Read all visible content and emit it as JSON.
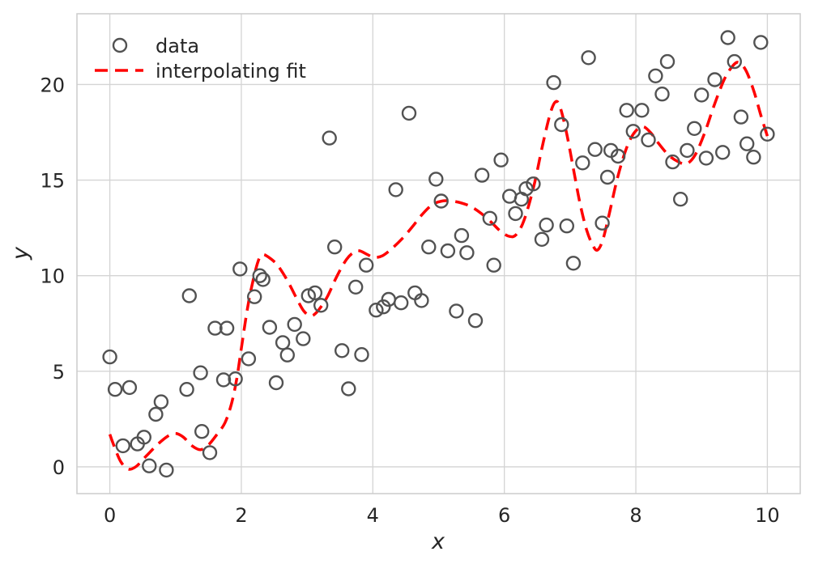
{
  "figure": {
    "background": "#ffffff"
  },
  "chart_data": {
    "type": "scatter",
    "title": "",
    "xlabel": "x",
    "ylabel": "y",
    "xlim": [
      -0.5,
      10.5
    ],
    "ylim": [
      -1.4,
      23.7
    ],
    "x_ticks": [
      "0",
      "2",
      "4",
      "6",
      "8",
      "10"
    ],
    "x_tick_values": [
      0,
      2,
      4,
      6,
      8,
      10
    ],
    "y_ticks": [
      "0",
      "5",
      "10",
      "15",
      "20"
    ],
    "y_tick_values": [
      0,
      5,
      10,
      15,
      20
    ],
    "grid": true,
    "grid_color": "#d4d4d4",
    "spine_color": "#cccccc",
    "legend": {
      "position": "upper left",
      "entries": [
        {
          "label": "data",
          "glyph": "open-circle-marker"
        },
        {
          "label": "interpolating fit",
          "glyph": "red-dashed-line"
        }
      ]
    },
    "series": [
      {
        "name": "data",
        "type": "scatter",
        "marker": "open-circle",
        "marker_color": "#525252",
        "points": [
          [
            0.0,
            5.75
          ],
          [
            0.08,
            4.05
          ],
          [
            0.2,
            1.1
          ],
          [
            0.3,
            4.15
          ],
          [
            0.42,
            1.2
          ],
          [
            0.52,
            1.55
          ],
          [
            0.6,
            0.05
          ],
          [
            0.7,
            2.75
          ],
          [
            0.78,
            3.4
          ],
          [
            0.86,
            -0.17
          ],
          [
            1.17,
            4.05
          ],
          [
            1.21,
            8.95
          ],
          [
            1.38,
            4.92
          ],
          [
            1.4,
            1.85
          ],
          [
            1.52,
            0.74
          ],
          [
            1.6,
            7.25
          ],
          [
            1.73,
            4.55
          ],
          [
            1.78,
            7.25
          ],
          [
            1.91,
            4.6
          ],
          [
            1.98,
            10.35
          ],
          [
            2.11,
            5.65
          ],
          [
            2.2,
            8.9
          ],
          [
            2.28,
            10.0
          ],
          [
            2.33,
            9.8
          ],
          [
            2.43,
            7.3
          ],
          [
            2.53,
            4.4
          ],
          [
            2.63,
            6.5
          ],
          [
            2.7,
            5.85
          ],
          [
            2.81,
            7.45
          ],
          [
            2.94,
            6.7
          ],
          [
            3.02,
            8.95
          ],
          [
            3.12,
            9.1
          ],
          [
            3.21,
            8.45
          ],
          [
            3.34,
            17.2
          ],
          [
            3.42,
            11.5
          ],
          [
            3.53,
            6.08
          ],
          [
            3.63,
            4.08
          ],
          [
            3.74,
            9.4
          ],
          [
            3.83,
            5.87
          ],
          [
            3.9,
            10.55
          ],
          [
            4.05,
            8.2
          ],
          [
            4.16,
            8.37
          ],
          [
            4.24,
            8.76
          ],
          [
            4.35,
            14.5
          ],
          [
            4.43,
            8.58
          ],
          [
            4.55,
            18.5
          ],
          [
            4.64,
            9.1
          ],
          [
            4.74,
            8.7
          ],
          [
            4.85,
            11.5
          ],
          [
            4.96,
            15.05
          ],
          [
            5.04,
            13.9
          ],
          [
            5.14,
            11.3
          ],
          [
            5.27,
            8.15
          ],
          [
            5.35,
            12.1
          ],
          [
            5.43,
            11.2
          ],
          [
            5.56,
            7.65
          ],
          [
            5.66,
            15.25
          ],
          [
            5.78,
            13.0
          ],
          [
            5.84,
            10.55
          ],
          [
            5.95,
            16.05
          ],
          [
            6.08,
            14.15
          ],
          [
            6.17,
            13.25
          ],
          [
            6.26,
            14.0
          ],
          [
            6.33,
            14.55
          ],
          [
            6.44,
            14.8
          ],
          [
            6.57,
            11.9
          ],
          [
            6.64,
            12.65
          ],
          [
            6.75,
            20.1
          ],
          [
            6.87,
            17.9
          ],
          [
            6.95,
            12.6
          ],
          [
            7.05,
            10.65
          ],
          [
            7.19,
            15.9
          ],
          [
            7.28,
            21.4
          ],
          [
            7.38,
            16.6
          ],
          [
            7.49,
            12.75
          ],
          [
            7.57,
            15.15
          ],
          [
            7.62,
            16.55
          ],
          [
            7.73,
            16.25
          ],
          [
            7.86,
            18.65
          ],
          [
            7.96,
            17.55
          ],
          [
            8.09,
            18.65
          ],
          [
            8.19,
            17.1
          ],
          [
            8.3,
            20.45
          ],
          [
            8.4,
            19.5
          ],
          [
            8.48,
            21.2
          ],
          [
            8.56,
            15.95
          ],
          [
            8.68,
            14.0
          ],
          [
            8.78,
            16.55
          ],
          [
            8.89,
            17.7
          ],
          [
            9.0,
            19.45
          ],
          [
            9.07,
            16.15
          ],
          [
            9.2,
            20.25
          ],
          [
            9.32,
            16.45
          ],
          [
            9.4,
            22.45
          ],
          [
            9.5,
            21.2
          ],
          [
            9.6,
            18.3
          ],
          [
            9.69,
            16.9
          ],
          [
            9.79,
            16.2
          ],
          [
            9.9,
            22.2
          ],
          [
            10.0,
            17.4
          ]
        ]
      },
      {
        "name": "interpolating fit",
        "type": "line",
        "style": "dashed",
        "color": "#ff0000",
        "line_width": 3.5,
        "points": [
          [
            0.0,
            1.7
          ],
          [
            0.08,
            0.95
          ],
          [
            0.17,
            0.25
          ],
          [
            0.28,
            -0.12
          ],
          [
            0.4,
            0.02
          ],
          [
            0.55,
            0.55
          ],
          [
            0.72,
            1.15
          ],
          [
            0.88,
            1.6
          ],
          [
            1.0,
            1.75
          ],
          [
            1.12,
            1.55
          ],
          [
            1.25,
            1.1
          ],
          [
            1.38,
            0.9
          ],
          [
            1.5,
            1.15
          ],
          [
            1.62,
            1.65
          ],
          [
            1.75,
            2.3
          ],
          [
            1.85,
            3.3
          ],
          [
            1.93,
            4.6
          ],
          [
            2.0,
            6.2
          ],
          [
            2.08,
            8.0
          ],
          [
            2.15,
            9.3
          ],
          [
            2.25,
            10.7
          ],
          [
            2.32,
            11.1
          ],
          [
            2.42,
            10.95
          ],
          [
            2.55,
            10.55
          ],
          [
            2.7,
            9.75
          ],
          [
            2.85,
            8.75
          ],
          [
            2.95,
            8.15
          ],
          [
            3.05,
            7.9
          ],
          [
            3.15,
            8.1
          ],
          [
            3.3,
            8.85
          ],
          [
            3.45,
            9.95
          ],
          [
            3.6,
            10.85
          ],
          [
            3.72,
            11.25
          ],
          [
            3.8,
            11.3
          ],
          [
            3.92,
            11.1
          ],
          [
            4.02,
            10.95
          ],
          [
            4.15,
            11.05
          ],
          [
            4.3,
            11.45
          ],
          [
            4.45,
            11.95
          ],
          [
            4.6,
            12.55
          ],
          [
            4.75,
            13.2
          ],
          [
            4.9,
            13.7
          ],
          [
            5.05,
            13.9
          ],
          [
            5.2,
            13.9
          ],
          [
            5.35,
            13.8
          ],
          [
            5.5,
            13.6
          ],
          [
            5.65,
            13.25
          ],
          [
            5.8,
            12.8
          ],
          [
            5.95,
            12.3
          ],
          [
            6.08,
            12.05
          ],
          [
            6.18,
            12.15
          ],
          [
            6.3,
            12.9
          ],
          [
            6.45,
            14.7
          ],
          [
            6.58,
            16.8
          ],
          [
            6.7,
            18.5
          ],
          [
            6.78,
            19.1
          ],
          [
            6.85,
            18.8
          ],
          [
            6.95,
            17.4
          ],
          [
            7.05,
            15.6
          ],
          [
            7.15,
            13.8
          ],
          [
            7.25,
            12.4
          ],
          [
            7.35,
            11.55
          ],
          [
            7.42,
            11.35
          ],
          [
            7.5,
            11.9
          ],
          [
            7.6,
            13.3
          ],
          [
            7.72,
            15.1
          ],
          [
            7.85,
            16.6
          ],
          [
            7.97,
            17.45
          ],
          [
            8.1,
            17.8
          ],
          [
            8.22,
            17.5
          ],
          [
            8.35,
            16.9
          ],
          [
            8.5,
            16.3
          ],
          [
            8.65,
            15.95
          ],
          [
            8.77,
            15.85
          ],
          [
            8.9,
            16.3
          ],
          [
            9.05,
            17.5
          ],
          [
            9.2,
            19.0
          ],
          [
            9.35,
            20.3
          ],
          [
            9.48,
            21.0
          ],
          [
            9.57,
            21.15
          ],
          [
            9.68,
            20.7
          ],
          [
            9.8,
            19.6
          ],
          [
            9.9,
            18.4
          ],
          [
            10.0,
            17.3
          ]
        ]
      }
    ]
  }
}
